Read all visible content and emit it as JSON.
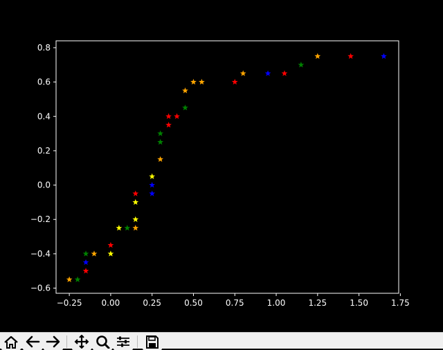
{
  "window": {
    "toolbar": {
      "buttons": [
        {
          "name": "home-icon",
          "tooltip": "Home"
        },
        {
          "name": "back-arrow-icon",
          "tooltip": "Back"
        },
        {
          "name": "forward-arrow-icon",
          "tooltip": "Forward"
        },
        {
          "name": "pan-icon",
          "tooltip": "Pan"
        },
        {
          "name": "zoom-icon",
          "tooltip": "Zoom"
        },
        {
          "name": "configure-subplots-icon",
          "tooltip": "Subplots"
        },
        {
          "name": "save-icon",
          "tooltip": "Save"
        }
      ]
    }
  },
  "chart_data": {
    "type": "scatter",
    "title": "",
    "xlabel": "",
    "ylabel": "",
    "xlim": [
      -0.33,
      1.74
    ],
    "ylim": [
      -0.63,
      0.84
    ],
    "xticks": [
      -0.25,
      0.0,
      0.25,
      0.5,
      0.75,
      1.0,
      1.25,
      1.5,
      1.75
    ],
    "xtick_labels": [
      "−0.25",
      "0.00",
      "0.25",
      "0.50",
      "0.75",
      "1.00",
      "1.25",
      "1.50",
      "1.75"
    ],
    "yticks": [
      -0.6,
      -0.4,
      -0.2,
      0.0,
      0.2,
      0.4,
      0.6,
      0.8
    ],
    "ytick_labels": [
      "−0.6",
      "−0.4",
      "−0.2",
      "0.0",
      "0.2",
      "0.4",
      "0.6",
      "0.8"
    ],
    "grid": false,
    "marker": "star",
    "colors": {
      "orange": "#ffa500",
      "green": "#008000",
      "red": "#ff0000",
      "blue": "#0000ff",
      "yellow": "#ffff00",
      "axes": "#ffffff",
      "background": "#000000"
    },
    "series": [
      {
        "color": "#ffa500",
        "x": [
          -0.25,
          -0.1,
          0.15,
          0.3,
          0.45,
          0.5,
          0.55,
          0.8,
          1.25
        ],
        "y": [
          -0.55,
          -0.4,
          -0.25,
          0.15,
          0.55,
          0.6,
          0.6,
          0.65,
          0.75
        ]
      },
      {
        "color": "#008000",
        "x": [
          -0.2,
          -0.15,
          0.1,
          0.3,
          0.3,
          0.45,
          1.15
        ],
        "y": [
          -0.55,
          -0.4,
          -0.25,
          0.25,
          0.3,
          0.45,
          0.7
        ]
      },
      {
        "color": "#ff0000",
        "x": [
          -0.15,
          0.0,
          0.15,
          0.35,
          0.35,
          0.4,
          0.75,
          1.05,
          1.45
        ],
        "y": [
          -0.5,
          -0.35,
          -0.05,
          0.35,
          0.4,
          0.4,
          0.6,
          0.65,
          0.75
        ]
      },
      {
        "color": "#0000ff",
        "x": [
          -0.15,
          0.25,
          0.25,
          0.95,
          1.65
        ],
        "y": [
          -0.45,
          -0.05,
          0.0,
          0.65,
          0.75
        ]
      },
      {
        "color": "#ffff00",
        "x": [
          0.0,
          0.05,
          0.15,
          0.15,
          0.25
        ],
        "y": [
          -0.4,
          -0.25,
          -0.2,
          -0.1,
          0.05
        ]
      }
    ]
  }
}
